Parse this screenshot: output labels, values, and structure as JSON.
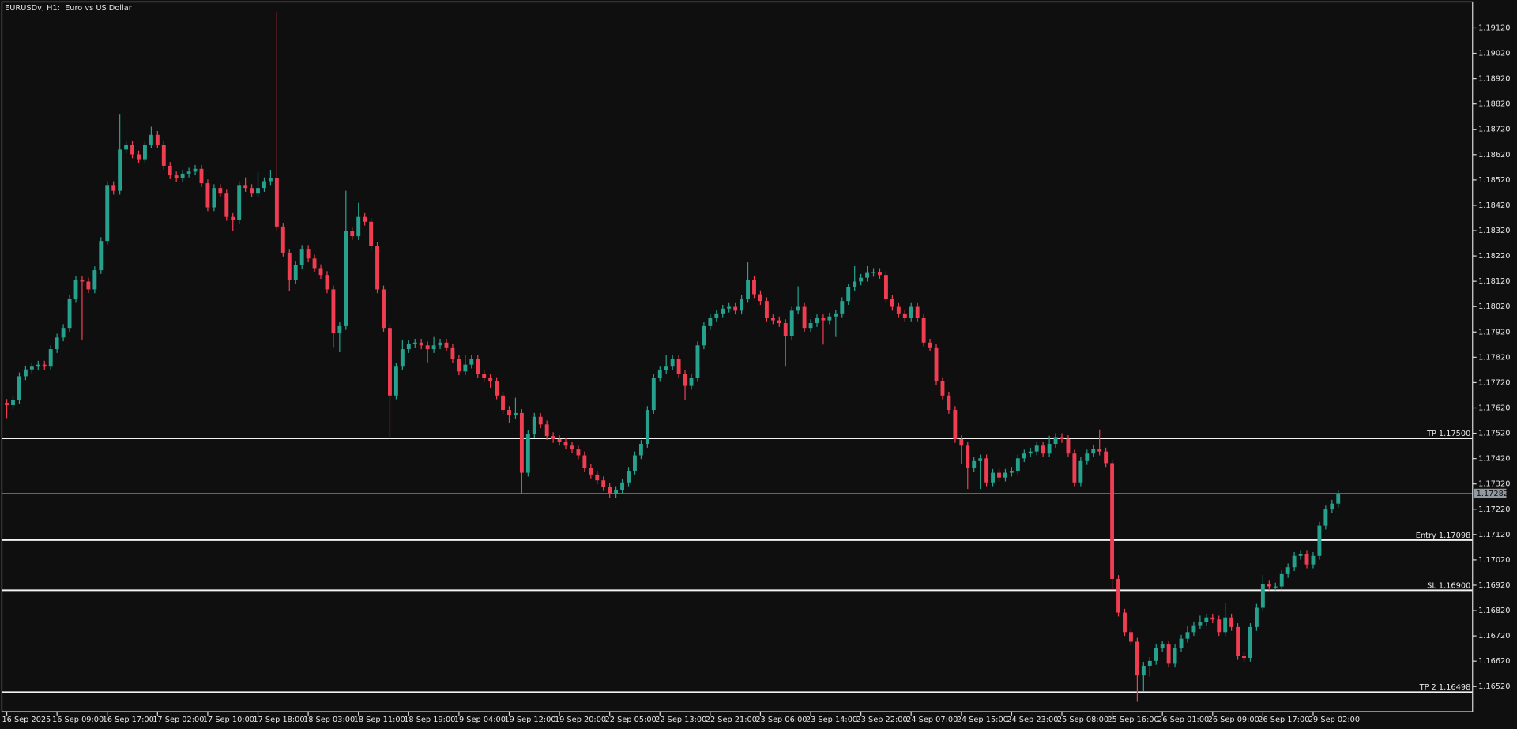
{
  "chart_data": {
    "type": "candlestick",
    "title": "EURUSDv, H1:  Euro vs US Dollar",
    "up_color": "#26a18e",
    "down_color": "#ef3d52",
    "ylim": [
      1.16421,
      1.19223
    ],
    "yticks": [
      {
        "value": 1.1912,
        "label": "1.19120"
      },
      {
        "value": 1.1902,
        "label": "1.19020"
      },
      {
        "value": 1.1892,
        "label": "1.18920"
      },
      {
        "value": 1.1882,
        "label": "1.18820"
      },
      {
        "value": 1.1872,
        "label": "1.18720"
      },
      {
        "value": 1.1862,
        "label": "1.18620"
      },
      {
        "value": 1.1852,
        "label": "1.18520"
      },
      {
        "value": 1.1842,
        "label": "1.18420"
      },
      {
        "value": 1.1832,
        "label": "1.18320"
      },
      {
        "value": 1.1822,
        "label": "1.18220"
      },
      {
        "value": 1.1812,
        "label": "1.18120"
      },
      {
        "value": 1.1802,
        "label": "1.18020"
      },
      {
        "value": 1.1792,
        "label": "1.17920"
      },
      {
        "value": 1.1782,
        "label": "1.17820"
      },
      {
        "value": 1.1772,
        "label": "1.17720"
      },
      {
        "value": 1.1762,
        "label": "1.17620"
      },
      {
        "value": 1.1752,
        "label": "1.17520"
      },
      {
        "value": 1.1742,
        "label": "1.17420"
      },
      {
        "value": 1.1732,
        "label": "1.17320"
      },
      {
        "value": 1.1722,
        "label": "1.17220"
      },
      {
        "value": 1.1712,
        "label": "1.17120"
      },
      {
        "value": 1.1702,
        "label": "1.17020"
      },
      {
        "value": 1.1692,
        "label": "1.16920"
      },
      {
        "value": 1.1682,
        "label": "1.16820"
      },
      {
        "value": 1.1672,
        "label": "1.16720"
      },
      {
        "value": 1.1662,
        "label": "1.16620"
      },
      {
        "value": 1.1652,
        "label": "1.16520"
      }
    ],
    "levels": [
      {
        "label": "TP 1.17500",
        "value": 1.175
      },
      {
        "label": "Entry 1.17098",
        "value": 1.17098
      },
      {
        "label": "SL 1.16900",
        "value": 1.169
      },
      {
        "label": "TP 2 1.16498",
        "value": 1.16498
      }
    ],
    "bid_line": 1.17282,
    "categories": [
      "16 Sep 2025",
      null,
      null,
      null,
      null,
      null,
      null,
      null,
      "16 Sep 09:00",
      null,
      null,
      null,
      null,
      null,
      null,
      null,
      "16 Sep 17:00",
      null,
      null,
      null,
      null,
      null,
      null,
      null,
      "17 Sep 02:00",
      null,
      null,
      null,
      null,
      null,
      null,
      null,
      "17 Sep 10:00",
      null,
      null,
      null,
      null,
      null,
      null,
      null,
      "17 Sep 18:00",
      null,
      null,
      null,
      null,
      null,
      null,
      null,
      "18 Sep 03:00",
      null,
      null,
      null,
      null,
      null,
      null,
      null,
      "18 Sep 11:00",
      null,
      null,
      null,
      null,
      null,
      null,
      null,
      "18 Sep 19:00",
      null,
      null,
      null,
      null,
      null,
      null,
      null,
      "19 Sep 04:00",
      null,
      null,
      null,
      null,
      null,
      null,
      null,
      "19 Sep 12:00",
      null,
      null,
      null,
      null,
      null,
      null,
      null,
      "19 Sep 20:00",
      null,
      null,
      null,
      null,
      null,
      null,
      null,
      "22 Sep 05:00",
      null,
      null,
      null,
      null,
      null,
      null,
      null,
      "22 Sep 13:00",
      null,
      null,
      null,
      null,
      null,
      null,
      null,
      "22 Sep 21:00",
      null,
      null,
      null,
      null,
      null,
      null,
      null,
      "23 Sep 06:00",
      null,
      null,
      null,
      null,
      null,
      null,
      null,
      "23 Sep 14:00",
      null,
      null,
      null,
      null,
      null,
      null,
      null,
      "23 Sep 22:00",
      null,
      null,
      null,
      null,
      null,
      null,
      null,
      "24 Sep 07:00",
      null,
      null,
      null,
      null,
      null,
      null,
      null,
      "24 Sep 15:00",
      null,
      null,
      null,
      null,
      null,
      null,
      null,
      "24 Sep 23:00",
      null,
      null,
      null,
      null,
      null,
      null,
      null,
      "25 Sep 08:00",
      null,
      null,
      null,
      null,
      null,
      null,
      null,
      "25 Sep 16:00",
      null,
      null,
      null,
      null,
      null,
      null,
      null,
      "26 Sep 01:00",
      null,
      null,
      null,
      null,
      null,
      null,
      null,
      "26 Sep 09:00",
      null,
      null,
      null,
      null,
      null,
      null,
      null,
      "26 Sep 17:00",
      null,
      null,
      null,
      null,
      null,
      null,
      null,
      "29 Sep 02:00",
      null,
      null,
      null,
      null
    ],
    "open": [
      1.1764,
      1.17631,
      1.1765,
      1.17745,
      1.17772,
      1.17783,
      1.17791,
      1.17783,
      1.17852,
      1.17898,
      1.17936,
      1.1805,
      1.18126,
      1.18119,
      1.18088,
      1.18164,
      1.18279,
      1.185,
      1.18477,
      1.1864,
      1.1866,
      1.18621,
      1.18602,
      1.1866,
      1.18698,
      1.1866,
      1.18576,
      1.18538,
      1.18526,
      1.18545,
      1.18553,
      1.18564,
      1.18507,
      1.18412,
      1.18488,
      1.18469,
      1.18374,
      1.18362,
      1.185,
      1.18488,
      1.18469,
      1.18488,
      1.18515,
      1.18526,
      1.18336,
      1.18233,
      1.18126,
      1.18183,
      1.18248,
      1.1821,
      1.18172,
      1.18145,
      1.18088,
      1.17917,
      1.17943,
      1.18317,
      1.18298,
      1.18374,
      1.18355,
      1.18259,
      1.18088,
      1.17936,
      1.17669,
      1.17783,
      1.17852,
      1.17871,
      1.17878,
      1.17867,
      1.17852,
      1.17867,
      1.17878,
      1.17859,
      1.17814,
      1.17764,
      1.17791,
      1.17814,
      1.17753,
      1.17738,
      1.17726,
      1.17669,
      1.17612,
      1.17593,
      1.176,
      1.17364,
      1.17517,
      1.17585,
      1.17555,
      1.17509,
      1.17497,
      1.17486,
      1.17471,
      1.17456,
      1.17433,
      1.17383,
      1.17357,
      1.17334,
      1.17307,
      1.1728,
      1.17296,
      1.17326,
      1.17372,
      1.17433,
      1.17478,
      1.17612,
      1.17738,
      1.17768,
      1.17783,
      1.17814,
      1.17753,
      1.17707,
      1.17738,
      1.17867,
      1.17943,
      1.17974,
      1.17993,
      1.18012,
      1.18019,
      1.18004,
      1.1805,
      1.18126,
      1.18069,
      1.18042,
      1.17974,
      1.17966,
      1.17955,
      1.17905,
      1.18004,
      1.18019,
      1.17936,
      1.17955,
      1.17974,
      1.17966,
      1.17981,
      1.17993,
      1.18042,
      1.18096,
      1.18119,
      1.18134,
      1.18153,
      1.18157,
      1.18145,
      1.1805,
      1.18019,
      1.17993,
      1.17974,
      1.18019,
      1.17974,
      1.17878,
      1.17859,
      1.17726,
      1.17669,
      1.17612,
      1.17497,
      1.17471,
      1.17383,
      1.1741,
      1.17421,
      1.17326,
      1.17364,
      1.17345,
      1.17364,
      1.17372,
      1.17421,
      1.1744,
      1.17448,
      1.17471,
      1.1744,
      1.17478,
      1.17505,
      1.17497,
      1.1744,
      1.17326,
      1.1741,
      1.1744,
      1.17459,
      1.17448,
      1.17402,
      1.16945,
      1.16812,
      1.16735,
      1.16697,
      1.16564,
      1.16602,
      1.16621,
      1.16671,
      1.16686,
      1.1661,
      1.16671,
      1.16709,
      1.16735,
      1.16762,
      1.16774,
      1.16793,
      1.16785,
      1.16735,
      1.16793,
      1.16755,
      1.1664,
      1.16633,
      1.16755,
      1.16831,
      1.16926,
      1.16915,
      1.16915,
      1.16964,
      1.16991,
      1.17036,
      1.17044,
      1.17002,
      1.17036,
      1.17155,
      1.17219,
      1.17242
    ],
    "high": [
      1.17655,
      1.17665,
      1.1776,
      1.17787,
      1.17798,
      1.17806,
      1.17806,
      1.17867,
      1.17913,
      1.17951,
      1.18065,
      1.18141,
      1.18141,
      1.18134,
      1.18179,
      1.18294,
      1.18515,
      1.18515,
      1.18781,
      1.18675,
      1.18675,
      1.18636,
      1.18675,
      1.1873,
      1.18713,
      1.18675,
      1.18591,
      1.18553,
      1.1856,
      1.18568,
      1.18579,
      1.18579,
      1.18522,
      1.18503,
      1.18503,
      1.18484,
      1.18389,
      1.18515,
      1.1853,
      1.18503,
      1.1855,
      1.1853,
      1.1856,
      1.19185,
      1.18351,
      1.18248,
      1.18198,
      1.18263,
      1.18263,
      1.18225,
      1.18187,
      1.1816,
      1.18103,
      1.17958,
      1.18477,
      1.18332,
      1.1843,
      1.18389,
      1.1837,
      1.18274,
      1.18103,
      1.17951,
      1.17798,
      1.1789,
      1.17886,
      1.17893,
      1.17893,
      1.17882,
      1.179,
      1.17893,
      1.17893,
      1.17874,
      1.17829,
      1.1783,
      1.17829,
      1.17829,
      1.17768,
      1.17753,
      1.17741,
      1.17684,
      1.17627,
      1.1766,
      1.17615,
      1.17532,
      1.176,
      1.176,
      1.1757,
      1.17524,
      1.17512,
      1.17501,
      1.17486,
      1.17471,
      1.17448,
      1.17398,
      1.17372,
      1.17349,
      1.17322,
      1.17311,
      1.17341,
      1.17387,
      1.17448,
      1.17493,
      1.17627,
      1.17753,
      1.17783,
      1.1783,
      1.17829,
      1.17829,
      1.17768,
      1.17753,
      1.17882,
      1.17958,
      1.17989,
      1.18008,
      1.18027,
      1.18034,
      1.18034,
      1.18065,
      1.18195,
      1.18141,
      1.18084,
      1.18057,
      1.17989,
      1.17981,
      1.1797,
      1.18019,
      1.181,
      1.18034,
      1.1797,
      1.17989,
      1.17989,
      1.17996,
      1.18008,
      1.18057,
      1.18111,
      1.1818,
      1.18149,
      1.1818,
      1.18172,
      1.18172,
      1.1816,
      1.18065,
      1.18034,
      1.18008,
      1.18034,
      1.18034,
      1.17989,
      1.17893,
      1.17874,
      1.17741,
      1.17684,
      1.17627,
      1.17512,
      1.17486,
      1.17425,
      1.17436,
      1.17436,
      1.17379,
      1.17379,
      1.17379,
      1.17387,
      1.17436,
      1.17455,
      1.17463,
      1.17486,
      1.17486,
      1.1751,
      1.1752,
      1.1752,
      1.17512,
      1.17455,
      1.17425,
      1.17455,
      1.17474,
      1.17535,
      1.17463,
      1.17417,
      1.1696,
      1.16827,
      1.1675,
      1.16712,
      1.16617,
      1.16636,
      1.16686,
      1.16701,
      1.16701,
      1.16686,
      1.16724,
      1.1676,
      1.16777,
      1.168,
      1.16808,
      1.16808,
      1.168,
      1.1685,
      1.16808,
      1.1677,
      1.16655,
      1.1677,
      1.16846,
      1.1696,
      1.16941,
      1.1693,
      1.16979,
      1.17006,
      1.17051,
      1.17059,
      1.17059,
      1.17051,
      1.1717,
      1.17234,
      1.17257,
      1.17297
    ],
    "low": [
      1.1758,
      1.17616,
      1.17635,
      1.1773,
      1.17757,
      1.17768,
      1.17768,
      1.17768,
      1.17837,
      1.17883,
      1.17921,
      1.18035,
      1.1789,
      1.18073,
      1.18073,
      1.18149,
      1.18264,
      1.18462,
      1.18462,
      1.18625,
      1.18606,
      1.18587,
      1.18587,
      1.18645,
      1.18645,
      1.18561,
      1.18523,
      1.18511,
      1.18511,
      1.1853,
      1.18538,
      1.18492,
      1.18397,
      1.18397,
      1.18454,
      1.18359,
      1.1832,
      1.18347,
      1.18473,
      1.18454,
      1.18454,
      1.18473,
      1.185,
      1.18321,
      1.18218,
      1.1808,
      1.18111,
      1.18168,
      1.18195,
      1.18157,
      1.1813,
      1.18073,
      1.1786,
      1.1784,
      1.17928,
      1.18283,
      1.18283,
      1.1834,
      1.18244,
      1.18073,
      1.17921,
      1.17497,
      1.17654,
      1.17768,
      1.17837,
      1.17856,
      1.17852,
      1.178,
      1.17837,
      1.17852,
      1.17844,
      1.17799,
      1.17749,
      1.17749,
      1.17776,
      1.17738,
      1.17723,
      1.177,
      1.17654,
      1.17597,
      1.1756,
      1.17578,
      1.1728,
      1.17349,
      1.17502,
      1.1754,
      1.17494,
      1.17482,
      1.17471,
      1.17456,
      1.17441,
      1.17418,
      1.17368,
      1.17342,
      1.17319,
      1.17292,
      1.17265,
      1.17265,
      1.17281,
      1.17311,
      1.17357,
      1.17418,
      1.17463,
      1.17597,
      1.17723,
      1.17753,
      1.17768,
      1.17738,
      1.1765,
      1.17692,
      1.17723,
      1.17852,
      1.17928,
      1.17959,
      1.17978,
      1.17997,
      1.17989,
      1.17989,
      1.18035,
      1.18054,
      1.18027,
      1.17959,
      1.17951,
      1.1794,
      1.17783,
      1.1789,
      1.17989,
      1.17921,
      1.17921,
      1.1794,
      1.1787,
      1.17951,
      1.179,
      1.17978,
      1.18027,
      1.18081,
      1.18104,
      1.18119,
      1.18138,
      1.1813,
      1.18035,
      1.18004,
      1.17978,
      1.17959,
      1.17959,
      1.17959,
      1.17863,
      1.17844,
      1.17711,
      1.17654,
      1.17597,
      1.17482,
      1.174,
      1.173,
      1.17368,
      1.173,
      1.17311,
      1.17311,
      1.1733,
      1.1733,
      1.17349,
      1.17357,
      1.17406,
      1.17425,
      1.17433,
      1.17425,
      1.17425,
      1.17463,
      1.17482,
      1.17425,
      1.17311,
      1.17311,
      1.17395,
      1.17425,
      1.17433,
      1.17387,
      1.169,
      1.16797,
      1.1672,
      1.16682,
      1.1646,
      1.165,
      1.1656,
      1.16606,
      1.16656,
      1.16595,
      1.16595,
      1.16656,
      1.16694,
      1.1672,
      1.16747,
      1.16759,
      1.1677,
      1.1672,
      1.1672,
      1.1674,
      1.16625,
      1.16618,
      1.16618,
      1.1674,
      1.16816,
      1.169,
      1.169,
      1.169,
      1.16949,
      1.16976,
      1.17021,
      1.16987,
      1.16987,
      1.17021,
      1.1714,
      1.17204,
      1.17227
    ],
    "close": [
      1.17631,
      1.1765,
      1.17745,
      1.17772,
      1.17783,
      1.17791,
      1.17783,
      1.17852,
      1.17898,
      1.17936,
      1.1805,
      1.18126,
      1.18119,
      1.18088,
      1.18164,
      1.18279,
      1.185,
      1.18477,
      1.1864,
      1.1866,
      1.18621,
      1.18602,
      1.1866,
      1.18698,
      1.1866,
      1.18576,
      1.18538,
      1.18526,
      1.18545,
      1.18553,
      1.18564,
      1.18507,
      1.18412,
      1.18488,
      1.18469,
      1.18374,
      1.18362,
      1.185,
      1.18488,
      1.18469,
      1.18488,
      1.18515,
      1.18526,
      1.18336,
      1.18233,
      1.18126,
      1.18183,
      1.18248,
      1.1821,
      1.18172,
      1.18145,
      1.18088,
      1.17917,
      1.17943,
      1.18317,
      1.18298,
      1.18374,
      1.18355,
      1.18259,
      1.18088,
      1.17936,
      1.17669,
      1.17783,
      1.17852,
      1.17871,
      1.17878,
      1.17867,
      1.17852,
      1.17867,
      1.17878,
      1.17859,
      1.17814,
      1.17764,
      1.17791,
      1.17814,
      1.17753,
      1.17738,
      1.17726,
      1.17669,
      1.17612,
      1.17593,
      1.176,
      1.17364,
      1.17517,
      1.17585,
      1.17555,
      1.17509,
      1.17497,
      1.17486,
      1.17471,
      1.17456,
      1.17433,
      1.17383,
      1.17357,
      1.17334,
      1.17307,
      1.1728,
      1.17296,
      1.17326,
      1.17372,
      1.17433,
      1.17478,
      1.17612,
      1.17738,
      1.17768,
      1.17783,
      1.17814,
      1.17753,
      1.17707,
      1.17738,
      1.17867,
      1.17943,
      1.17974,
      1.17993,
      1.18012,
      1.18019,
      1.18004,
      1.1805,
      1.18126,
      1.18069,
      1.18042,
      1.17974,
      1.17966,
      1.17955,
      1.17905,
      1.18004,
      1.18019,
      1.17936,
      1.17955,
      1.17974,
      1.17966,
      1.17981,
      1.17993,
      1.18042,
      1.18096,
      1.18119,
      1.18134,
      1.18153,
      1.18157,
      1.18145,
      1.1805,
      1.18019,
      1.17993,
      1.17974,
      1.18019,
      1.17974,
      1.17878,
      1.17859,
      1.17726,
      1.17669,
      1.17612,
      1.17497,
      1.17471,
      1.17383,
      1.1741,
      1.17421,
      1.17326,
      1.17364,
      1.17345,
      1.17364,
      1.17372,
      1.17421,
      1.1744,
      1.17448,
      1.17471,
      1.1744,
      1.17478,
      1.17505,
      1.17497,
      1.1744,
      1.17326,
      1.1741,
      1.1744,
      1.17459,
      1.17448,
      1.17402,
      1.16945,
      1.16812,
      1.16735,
      1.16697,
      1.16564,
      1.16602,
      1.16621,
      1.16671,
      1.16686,
      1.1661,
      1.16671,
      1.16709,
      1.16735,
      1.16762,
      1.16774,
      1.16793,
      1.16785,
      1.16735,
      1.16793,
      1.16755,
      1.1664,
      1.16633,
      1.16755,
      1.16831,
      1.16926,
      1.16915,
      1.16915,
      1.16964,
      1.16991,
      1.17036,
      1.17044,
      1.17002,
      1.17036,
      1.17155,
      1.17219,
      1.17242,
      1.17282
    ]
  }
}
